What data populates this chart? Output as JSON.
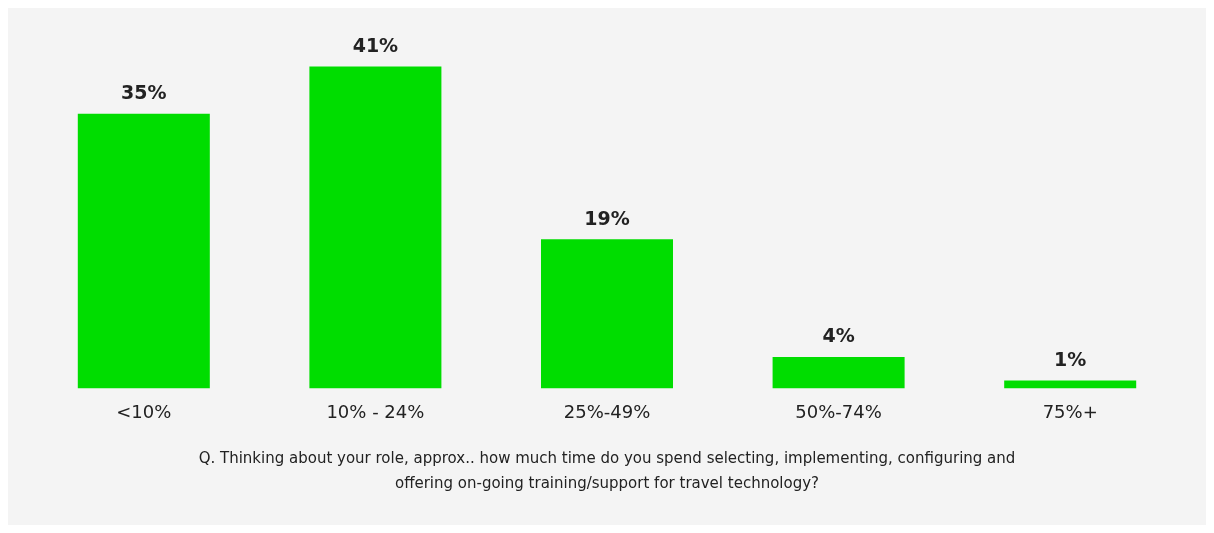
{
  "chart_data": {
    "type": "bar",
    "categories": [
      "<10%",
      "10% - 24%",
      "25%-49%",
      "50%-74%",
      "75%+"
    ],
    "values": [
      35,
      41,
      19,
      4,
      1
    ],
    "value_labels": [
      "35%",
      "41%",
      "19%",
      "4%",
      "1%"
    ],
    "color": "#00dd00",
    "grid": false,
    "legend": false,
    "annotations": [
      "Q. Thinking about your role, approx.. how much time do you spend selecting, implementing, configuring and offering on-going training/support for travel technology?"
    ]
  }
}
